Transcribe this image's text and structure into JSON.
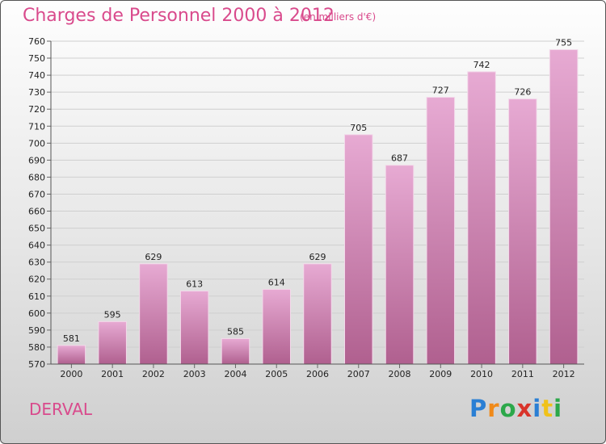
{
  "header": {
    "title": "Charges de Personnel 2000 à 2012",
    "subtitle": "(en milliers d'€)"
  },
  "footer": {
    "commune": "DERVAL",
    "logo": {
      "p": "P",
      "r": "r",
      "o": "o",
      "x": "x",
      "i1": "i",
      "t": "t",
      "i2": "i"
    }
  },
  "colors": {
    "bar_top": "#e7aad3",
    "bar_bottom": "#b0608f",
    "title": "#d94a8c"
  },
  "chart_data": {
    "type": "bar",
    "title": "Charges de Personnel 2000 à 2012",
    "subtitle": "(en milliers d'€)",
    "categories": [
      "2000",
      "2001",
      "2002",
      "2003",
      "2004",
      "2005",
      "2006",
      "2007",
      "2008",
      "2009",
      "2010",
      "2011",
      "2012"
    ],
    "values": [
      581,
      595,
      629,
      613,
      585,
      614,
      629,
      705,
      687,
      727,
      742,
      726,
      755
    ],
    "ylim": [
      570,
      760
    ],
    "yticks": [
      570,
      580,
      590,
      600,
      610,
      620,
      630,
      640,
      650,
      660,
      670,
      680,
      690,
      700,
      710,
      720,
      730,
      740,
      750,
      760
    ],
    "grid": true,
    "legend": "none"
  }
}
